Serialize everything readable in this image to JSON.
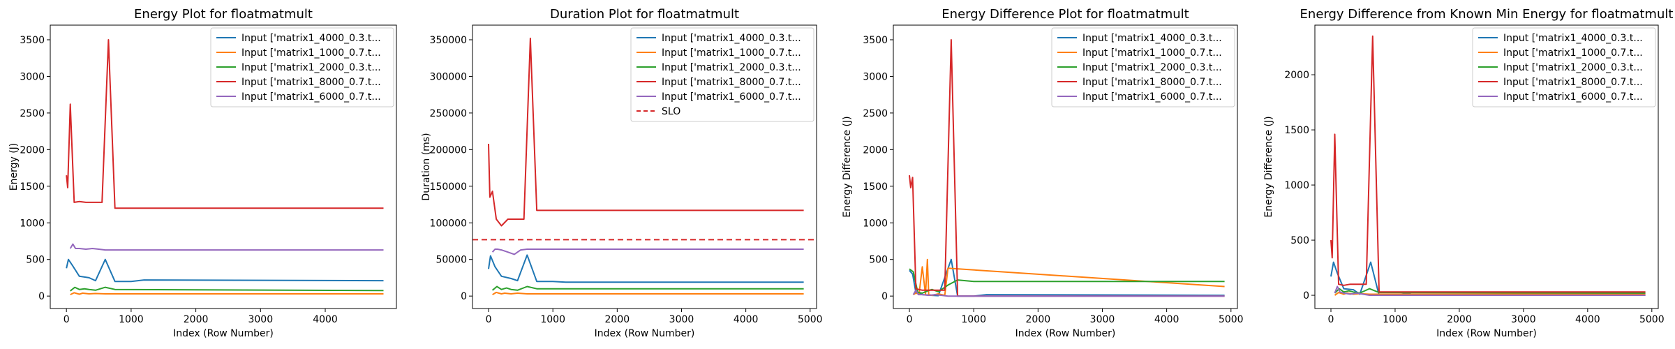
{
  "chart_data": [
    {
      "type": "line",
      "title": "Energy Plot for floatmatmult",
      "xlabel": "Index (Row Number)",
      "ylabel": "Energy (J)",
      "xlim": [
        -250,
        5100
      ],
      "ylim": [
        -170,
        3700
      ],
      "xticks": [
        0,
        1000,
        2000,
        3000,
        4000
      ],
      "yticks": [
        0,
        500,
        1000,
        1500,
        2000,
        2500,
        3000,
        3500
      ],
      "grid": false,
      "legend": "top-right",
      "series": [
        {
          "name": "Input ['matrix1_4000_0.3.t...",
          "color": "#1f77b4",
          "x": [
            0,
            30,
            100,
            200,
            350,
            450,
            600,
            750,
            1000,
            1200,
            4900
          ],
          "y": [
            380,
            500,
            410,
            270,
            250,
            210,
            500,
            200,
            200,
            220,
            210
          ]
        },
        {
          "name": "Input ['matrix1_1000_0.7.t...",
          "color": "#ff7f0e",
          "x": [
            60,
            120,
            200,
            250,
            350,
            450,
            600,
            4900
          ],
          "y": [
            20,
            45,
            25,
            40,
            30,
            35,
            30,
            30
          ]
        },
        {
          "name": "Input ['matrix1_2000_0.3.t...",
          "color": "#2ca02c",
          "x": [
            60,
            130,
            200,
            280,
            350,
            450,
            600,
            750,
            4900
          ],
          "y": [
            70,
            120,
            90,
            100,
            90,
            80,
            120,
            90,
            75
          ]
        },
        {
          "name": "Input ['matrix1_8000_0.7.t...",
          "color": "#d62728",
          "x": [
            0,
            20,
            60,
            120,
            200,
            300,
            550,
            650,
            750,
            4900
          ],
          "y": [
            1650,
            1480,
            2620,
            1280,
            1290,
            1280,
            1280,
            3500,
            1200,
            1200
          ]
        },
        {
          "name": "Input ['matrix1_6000_0.7.t...",
          "color": "#9467bd",
          "x": [
            60,
            100,
            140,
            200,
            300,
            400,
            500,
            600,
            4900
          ],
          "y": [
            650,
            710,
            650,
            650,
            640,
            650,
            640,
            630,
            630
          ]
        }
      ]
    },
    {
      "type": "line",
      "title": "Duration Plot for floatmatmult",
      "xlabel": "Index (Row Number)",
      "ylabel": "Duration (ms)",
      "xlim": [
        -250,
        5100
      ],
      "ylim": [
        -17000,
        370000
      ],
      "xticks": [
        0,
        1000,
        2000,
        3000,
        4000,
        5000
      ],
      "yticks": [
        0,
        50000,
        100000,
        150000,
        200000,
        250000,
        300000,
        350000
      ],
      "grid": false,
      "legend": "top-right",
      "series": [
        {
          "name": "Input ['matrix1_4000_0.3.t...",
          "color": "#1f77b4",
          "x": [
            0,
            30,
            100,
            200,
            350,
            450,
            600,
            750,
            1000,
            1200,
            4900
          ],
          "y": [
            37000,
            55000,
            40000,
            27000,
            24000,
            21000,
            56000,
            20000,
            20000,
            19000,
            19000
          ]
        },
        {
          "name": "Input ['matrix1_1000_0.7.t...",
          "color": "#ff7f0e",
          "x": [
            60,
            120,
            200,
            250,
            350,
            450,
            600,
            4900
          ],
          "y": [
            2000,
            5000,
            3000,
            4000,
            3000,
            4000,
            3000,
            3000
          ]
        },
        {
          "name": "Input ['matrix1_2000_0.3.t...",
          "color": "#2ca02c",
          "x": [
            60,
            130,
            200,
            280,
            350,
            450,
            600,
            750,
            4900
          ],
          "y": [
            8000,
            13000,
            9000,
            11000,
            9000,
            8000,
            13000,
            10000,
            10000
          ]
        },
        {
          "name": "Input ['matrix1_8000_0.7.t...",
          "color": "#d62728",
          "x": [
            0,
            20,
            60,
            120,
            200,
            300,
            550,
            650,
            750,
            4900
          ],
          "y": [
            208000,
            135000,
            143000,
            105000,
            96000,
            105000,
            105000,
            352000,
            117000,
            117000
          ]
        },
        {
          "name": "Input ['matrix1_6000_0.7.t...",
          "color": "#9467bd",
          "x": [
            60,
            100,
            140,
            200,
            300,
            400,
            500,
            600,
            4900
          ],
          "y": [
            60000,
            64000,
            64000,
            63000,
            60000,
            57000,
            63000,
            64000,
            64000
          ]
        }
      ],
      "reference_lines": [
        {
          "name": "SLO",
          "color": "#d62728",
          "y": 77000,
          "style": "dashed"
        }
      ]
    },
    {
      "type": "line",
      "title": "Energy Difference Plot for floatmatmult",
      "xlabel": "Index (Row Number)",
      "ylabel": "Energy Difference (J)",
      "xlim": [
        -250,
        5100
      ],
      "ylim": [
        -170,
        3700
      ],
      "xticks": [
        0,
        1000,
        2000,
        3000,
        4000,
        5000
      ],
      "yticks": [
        0,
        500,
        1000,
        1500,
        2000,
        2500,
        3000,
        3500
      ],
      "grid": false,
      "legend": "top-right",
      "series": [
        {
          "name": "Input ['matrix1_4000_0.3.t...",
          "color": "#1f77b4",
          "x": [
            0,
            50,
            100,
            200,
            350,
            450,
            650,
            750,
            1000,
            1200,
            4900
          ],
          "y": [
            350,
            300,
            50,
            20,
            10,
            5,
            500,
            0,
            0,
            20,
            10
          ]
        },
        {
          "name": "Input ['matrix1_1000_0.7.t...",
          "color": "#ff7f0e",
          "x": [
            60,
            100,
            150,
            200,
            250,
            280,
            300,
            350,
            450,
            550,
            600,
            4900
          ],
          "y": [
            20,
            40,
            30,
            400,
            20,
            500,
            20,
            10,
            30,
            10,
            380,
            130
          ]
        },
        {
          "name": "Input ['matrix1_2000_0.3.t...",
          "color": "#2ca02c",
          "x": [
            0,
            60,
            130,
            200,
            280,
            350,
            450,
            600,
            750,
            1000,
            4900
          ],
          "y": [
            370,
            330,
            50,
            40,
            70,
            90,
            60,
            150,
            220,
            200,
            200
          ]
        },
        {
          "name": "Input ['matrix1_8000_0.7.t...",
          "color": "#d62728",
          "x": [
            0,
            20,
            50,
            100,
            200,
            300,
            550,
            650,
            750,
            4900
          ],
          "y": [
            1650,
            1480,
            1620,
            100,
            80,
            80,
            80,
            3500,
            0,
            0
          ]
        },
        {
          "name": "Input ['matrix1_6000_0.7.t...",
          "color": "#9467bd",
          "x": [
            60,
            100,
            140,
            200,
            300,
            400,
            500,
            600,
            4900
          ],
          "y": [
            20,
            80,
            20,
            20,
            10,
            20,
            10,
            0,
            0
          ]
        }
      ]
    },
    {
      "type": "line",
      "title": "Energy Difference from Known Min Energy for floatmatmult",
      "xlabel": "Index (Row Number)",
      "ylabel": "Energy Difference (J)",
      "xlim": [
        -250,
        5100
      ],
      "ylim": [
        -120,
        2450
      ],
      "xticks": [
        0,
        1000,
        2000,
        3000,
        4000,
        5000
      ],
      "yticks": [
        0,
        500,
        1000,
        1500,
        2000
      ],
      "grid": false,
      "legend": "top-right",
      "series": [
        {
          "name": "Input ['matrix1_4000_0.3.t...",
          "color": "#1f77b4",
          "x": [
            0,
            40,
            100,
            200,
            350,
            450,
            620,
            750,
            1000,
            1200,
            1300,
            4900
          ],
          "y": [
            170,
            300,
            200,
            60,
            50,
            10,
            300,
            0,
            0,
            20,
            0,
            0
          ]
        },
        {
          "name": "Input ['matrix1_1000_0.7.t...",
          "color": "#ff7f0e",
          "x": [
            60,
            120,
            200,
            250,
            350,
            450,
            600,
            4900
          ],
          "y": [
            0,
            25,
            10,
            20,
            10,
            15,
            10,
            10
          ]
        },
        {
          "name": "Input ['matrix1_2000_0.3.t...",
          "color": "#2ca02c",
          "x": [
            60,
            130,
            200,
            280,
            350,
            450,
            600,
            750,
            4900
          ],
          "y": [
            20,
            60,
            30,
            40,
            30,
            20,
            60,
            25,
            20
          ]
        },
        {
          "name": "Input ['matrix1_8000_0.7.t...",
          "color": "#d62728",
          "x": [
            0,
            20,
            60,
            120,
            200,
            300,
            550,
            650,
            750,
            4900
          ],
          "y": [
            500,
            340,
            1460,
            100,
            90,
            100,
            100,
            2350,
            30,
            30
          ]
        },
        {
          "name": "Input ['matrix1_6000_0.7.t...",
          "color": "#9467bd",
          "x": [
            60,
            100,
            140,
            200,
            300,
            400,
            500,
            600,
            4900
          ],
          "y": [
            20,
            80,
            30,
            20,
            10,
            20,
            10,
            0,
            0
          ]
        }
      ]
    }
  ]
}
